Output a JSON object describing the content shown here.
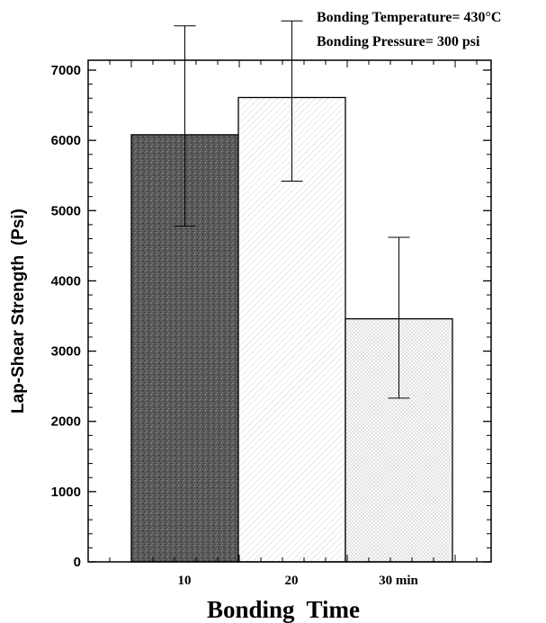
{
  "chart_data": {
    "type": "bar",
    "categories": [
      "10",
      "20",
      "30 min"
    ],
    "values": [
      6080,
      6610,
      3460
    ],
    "error_low": [
      4780,
      5420,
      2330
    ],
    "error_high": [
      7630,
      7700,
      4620
    ],
    "xlabel": "Bonding  Time",
    "ylabel": "Lap-Shear Strength  (Psi)",
    "ylim": [
      0,
      7150
    ],
    "yticks": [
      0,
      1000,
      2000,
      3000,
      4000,
      5000,
      6000,
      7000
    ],
    "ytick_labels": [
      "0",
      "1000",
      "2000",
      "3000",
      "4000",
      "5000",
      "6000",
      "7000"
    ],
    "annotations": [
      "Bonding Temperature= 430°C",
      "Bonding Pressure= 300 psi"
    ],
    "grid": false,
    "legend": "none",
    "bar_fills": [
      "dark-stipple",
      "light-hatch",
      "light-crosshatch"
    ]
  }
}
